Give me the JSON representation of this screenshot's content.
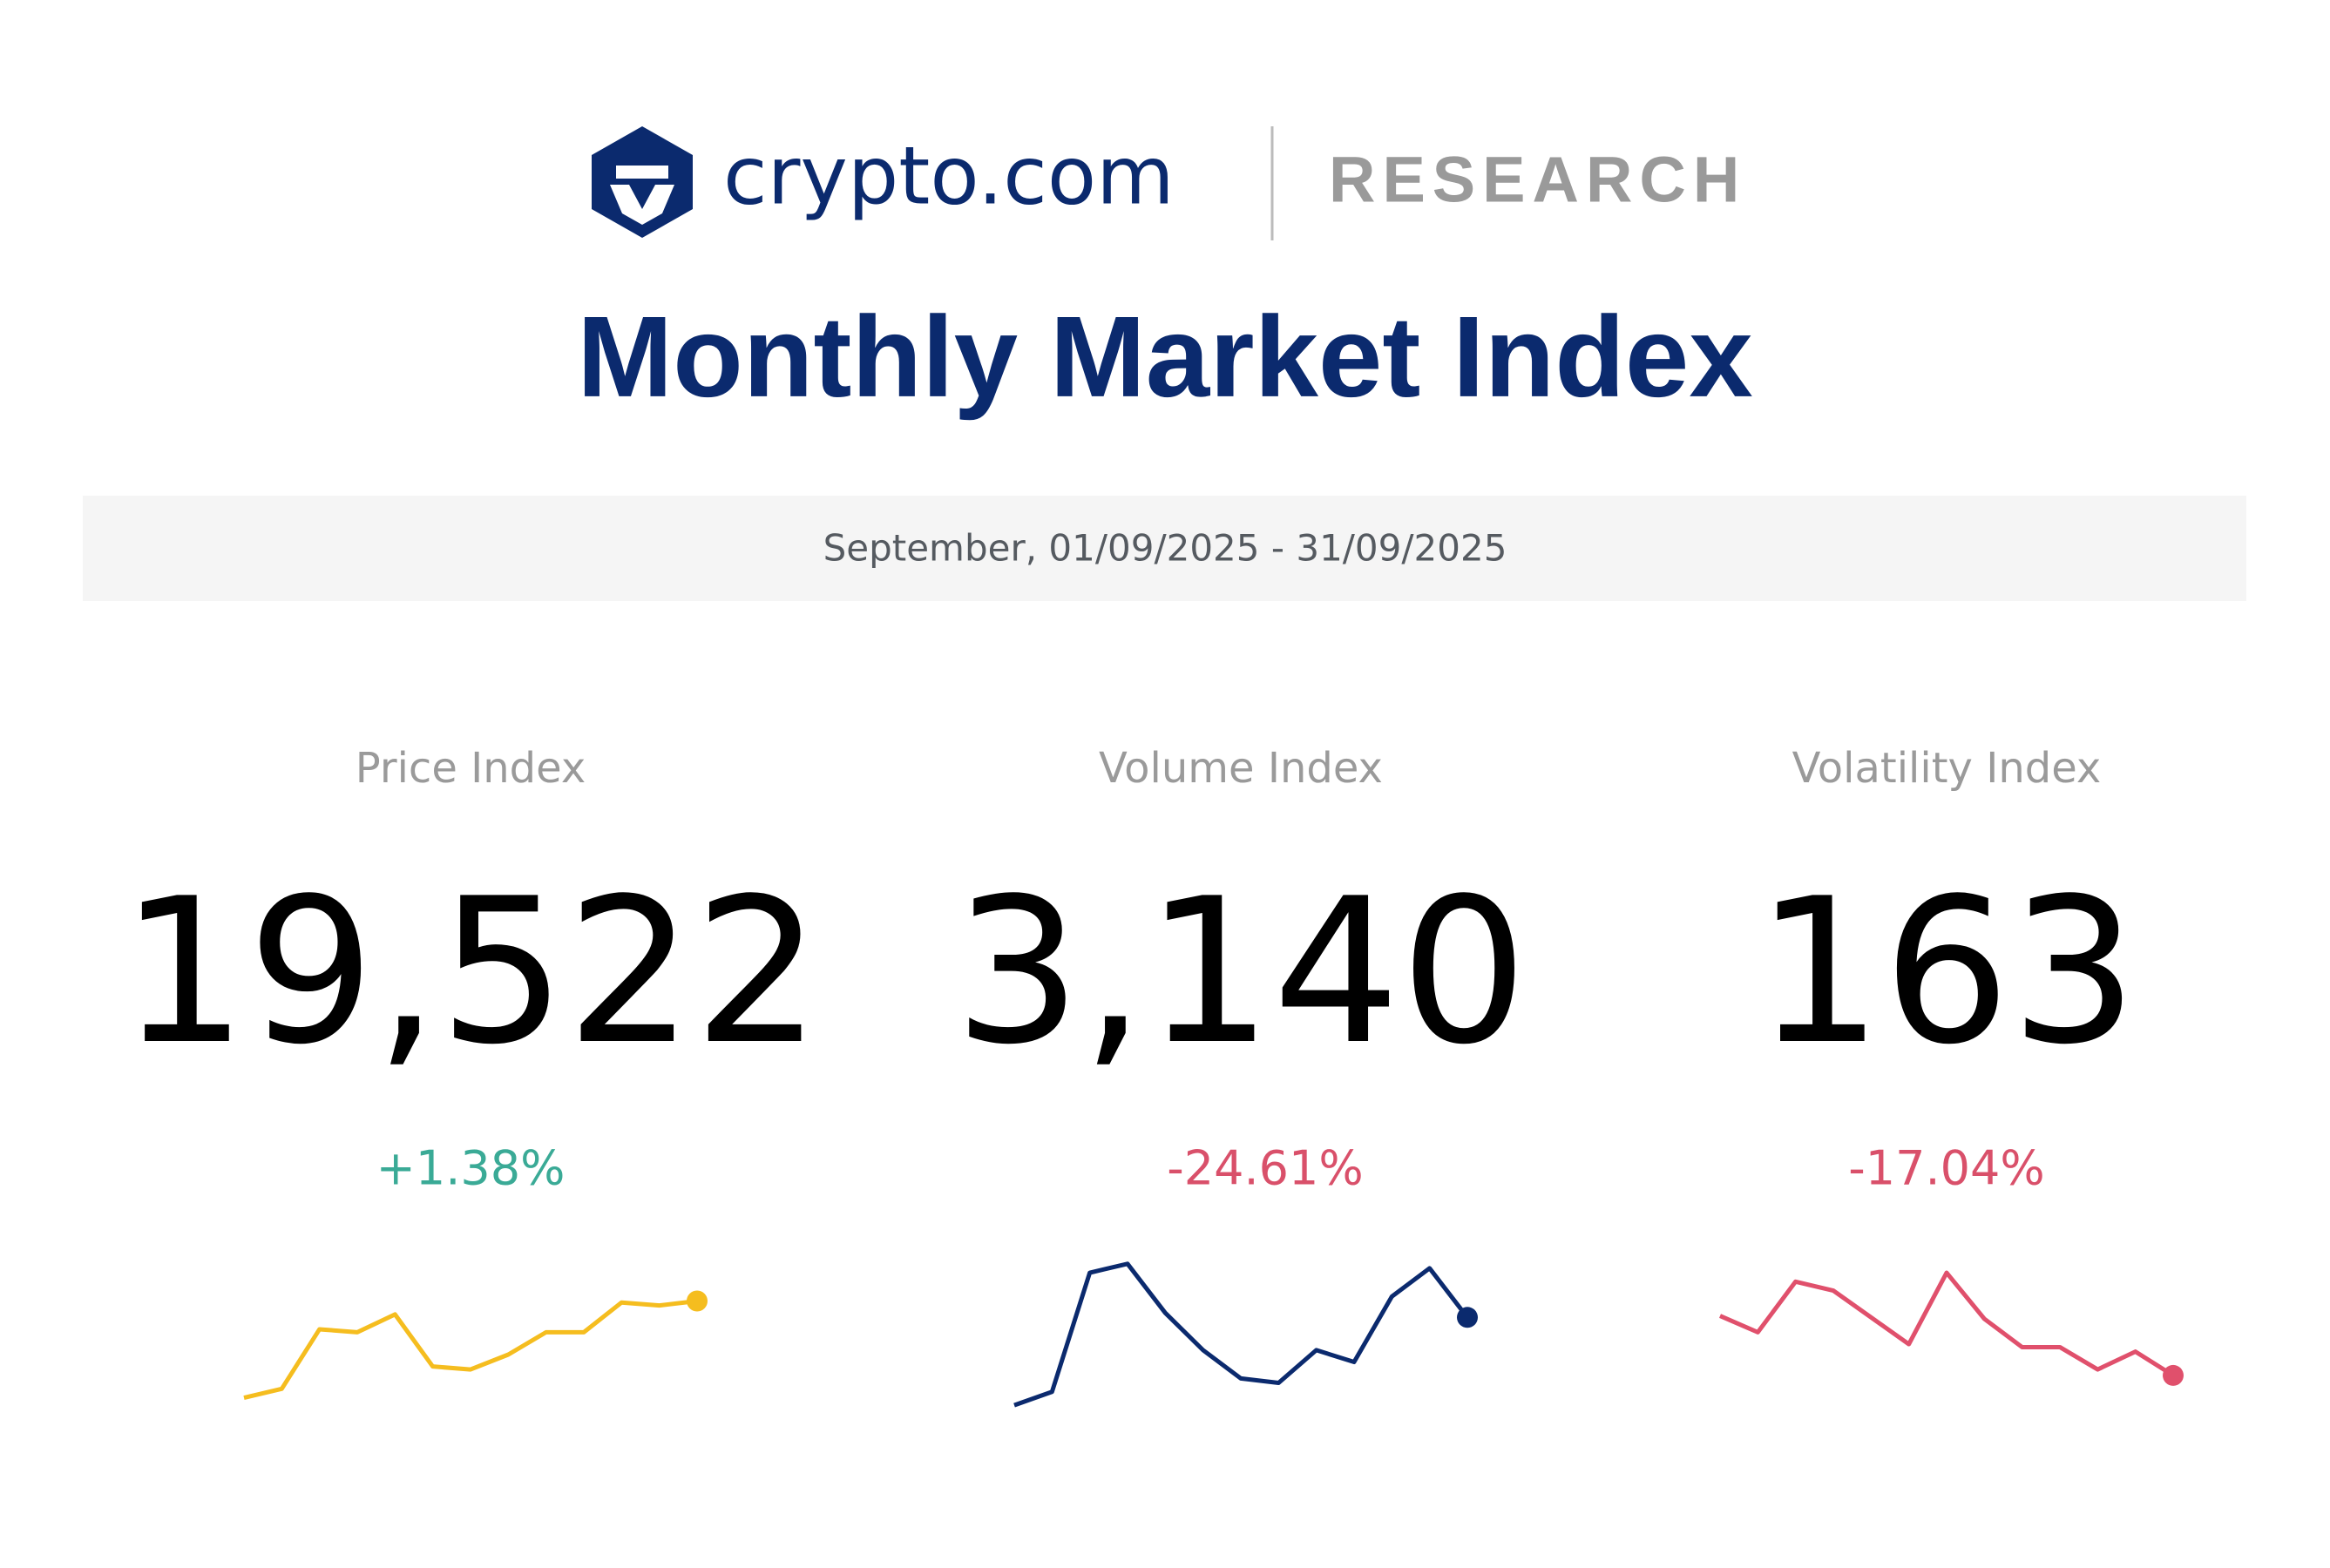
{
  "header": {
    "brand": "crypto.com",
    "section": "RESEARCH",
    "title": "Monthly Market Index",
    "period": "September, 01/09/2025 - 31/09/2025"
  },
  "cards": [
    {
      "label": "Price Index",
      "value": "19,522",
      "change": "+1.38%",
      "change_color": "#3aaa96",
      "sparkline": {
        "type": "line",
        "color": "#f5bd1f",
        "ylim": [
          0,
          120
        ],
        "values": [
          19,
          25,
          65,
          63,
          75,
          40,
          38,
          48,
          63,
          63,
          83,
          81,
          84
        ]
      }
    },
    {
      "label": "Volume Index",
      "value": "3,140",
      "change": "-24.61%",
      "change_color": "#d9506a",
      "sparkline": {
        "type": "line",
        "color": "#0b2a6e",
        "ylim": [
          0,
          120
        ],
        "values": [
          14,
          23,
          103,
          109,
          76,
          51,
          32,
          29,
          51,
          43,
          87,
          106,
          73
        ]
      }
    },
    {
      "label": "Volatility Index",
      "value": "163",
      "change": "-17.04%",
      "change_color": "#d9506a",
      "sparkline": {
        "type": "line",
        "color": "#e0506c",
        "ylim": [
          0,
          120
        ],
        "values": [
          74,
          63,
          97,
          91,
          73,
          55,
          103,
          72,
          53,
          53,
          38,
          50,
          34
        ]
      }
    }
  ]
}
